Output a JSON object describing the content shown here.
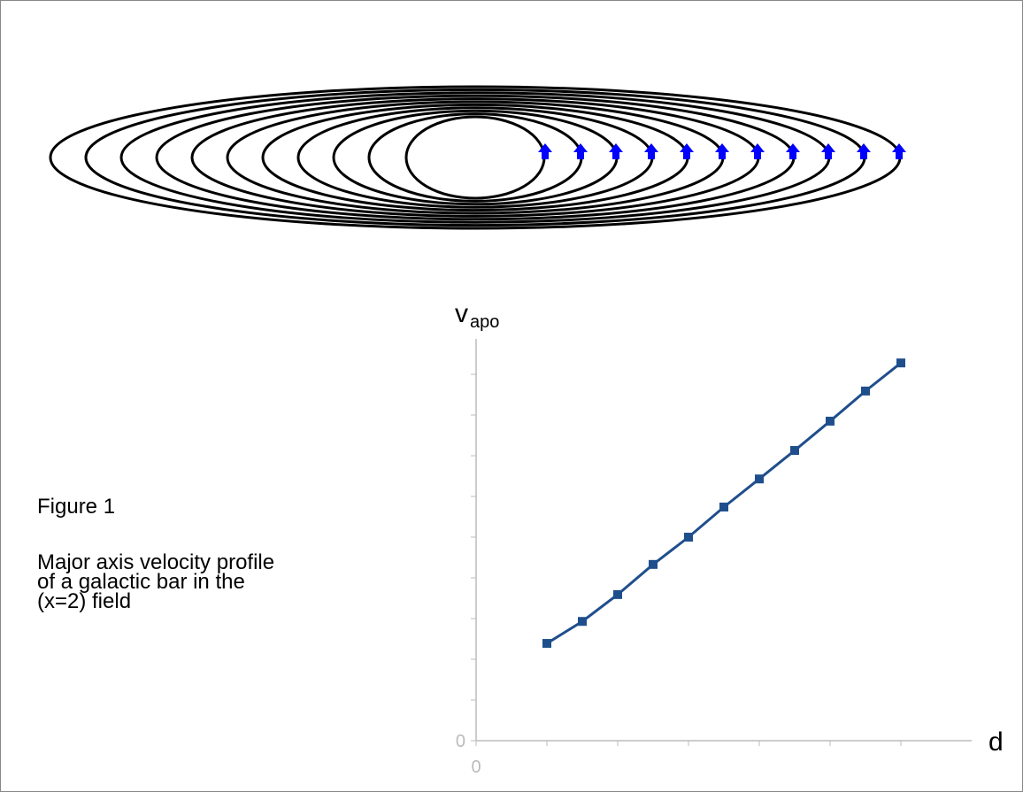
{
  "figure": {
    "label": "Figure 1",
    "caption": [
      "Major axis velocity profile",
      "of a galactic bar in the",
      "(x=2) field"
    ]
  },
  "chart_data": {
    "type": "line",
    "y_label": "v",
    "y_label_subscript": "apo",
    "x_label": "d",
    "x": [
      1,
      1.5,
      2,
      2.5,
      3,
      3.5,
      4,
      4.5,
      5,
      5.5,
      6
    ],
    "series": [
      {
        "color": "#1f4e8c",
        "values": [
          2.39,
          2.93,
          3.59,
          4.33,
          5.0,
          5.74,
          6.43,
          7.13,
          7.85,
          8.59,
          9.28
        ]
      }
    ],
    "xlim": [
      0,
      7
    ],
    "ylim": [
      0,
      9.87
    ],
    "xticks": [
      0
    ],
    "yticks": [
      0
    ],
    "x_minor_ticks": [
      1,
      2,
      3,
      4,
      5,
      6
    ],
    "y_minor_ticks": [
      1,
      2,
      3,
      4,
      5,
      6,
      7,
      8,
      9
    ]
  }
}
